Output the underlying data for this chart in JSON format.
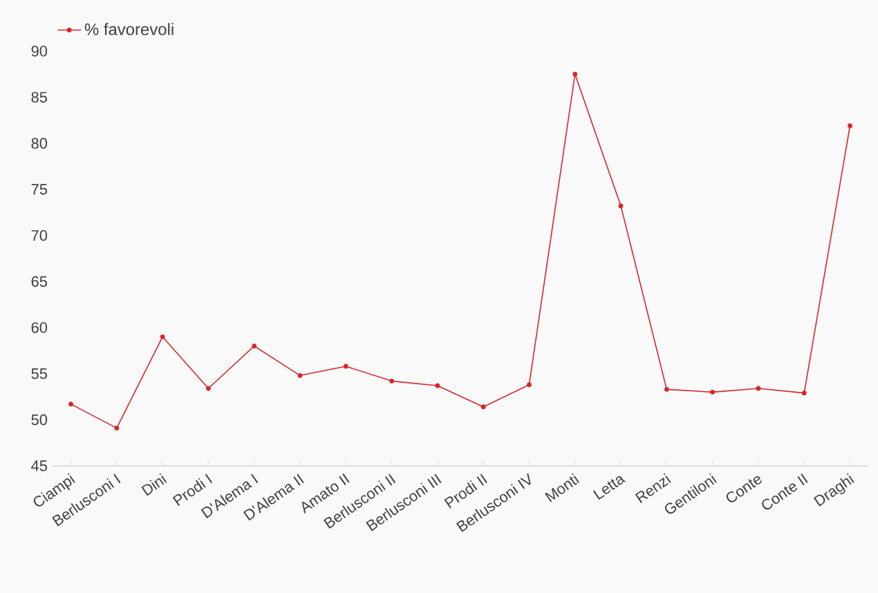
{
  "chart_data": {
    "type": "line",
    "categories": [
      "Ciampi",
      "Berlusconi I",
      "Dini",
      "Prodi I",
      "D'Alema I",
      "D'Alema II",
      "Amato II",
      "Berlusconi II",
      "Berlusconi III",
      "Prodi II",
      "Berlusconi IV",
      "Monti",
      "Letta",
      "Renzi",
      "Gentiloni",
      "Conte",
      "Conte II",
      "Draghi"
    ],
    "series": [
      {
        "name": "% favorevoli",
        "color": "#d7262b",
        "values": [
          51.7,
          49.1,
          59.0,
          53.4,
          58.0,
          54.8,
          55.8,
          54.2,
          53.7,
          51.4,
          53.8,
          87.5,
          73.2,
          53.3,
          53.0,
          53.4,
          52.9,
          81.9
        ]
      }
    ],
    "ylim": [
      45,
      90
    ],
    "yticks": [
      45,
      50,
      55,
      60,
      65,
      70,
      75,
      80,
      85,
      90
    ],
    "legend": "top left",
    "marker": "circle"
  }
}
